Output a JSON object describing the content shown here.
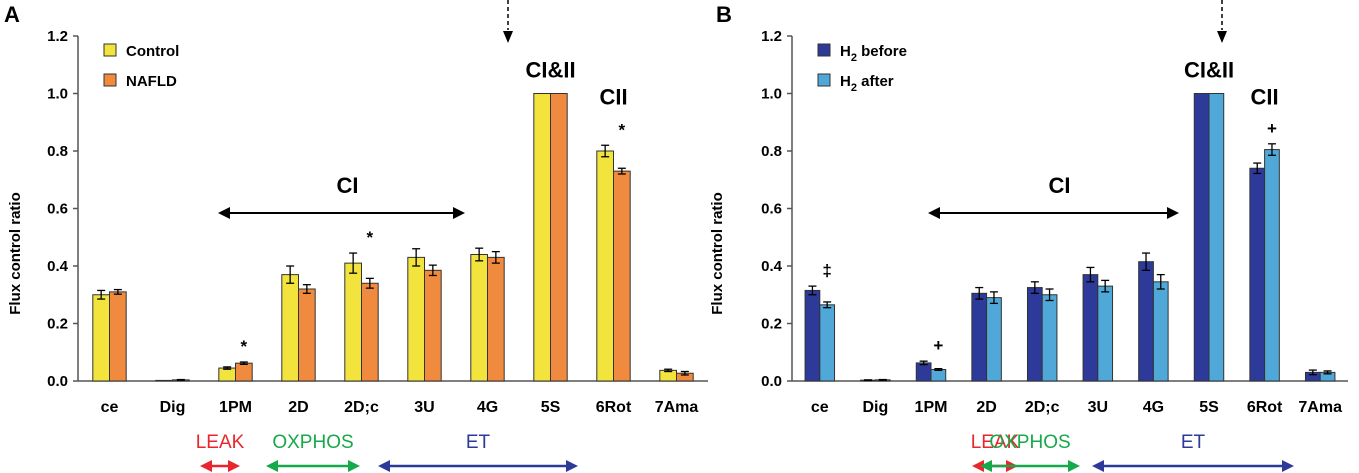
{
  "chart_data": [
    {
      "type": "bar",
      "panel_label": "A",
      "ylabel": "Flux control ratio",
      "ylim": [
        0,
        1.2
      ],
      "yticks": [
        "0.0",
        "0.2",
        "0.4",
        "0.6",
        "0.8",
        "1.0",
        "1.2"
      ],
      "categories": [
        "ce",
        "Dig",
        "1PM",
        "2D",
        "2D;c",
        "3U",
        "4G",
        "5S",
        "6Rot",
        "7Ama"
      ],
      "series": [
        {
          "name": "Control",
          "color": "#F2E33D",
          "values": [
            0.3,
            0.0,
            0.045,
            0.37,
            0.41,
            0.43,
            0.44,
            1.0,
            0.8,
            0.037
          ],
          "errors": [
            0.015,
            0.0,
            0.004,
            0.03,
            0.035,
            0.03,
            0.022,
            0.0,
            0.02,
            0.004
          ]
        },
        {
          "name": "NAFLD",
          "color": "#F08A3E",
          "values": [
            0.31,
            0.004,
            0.062,
            0.32,
            0.34,
            0.385,
            0.43,
            1.0,
            0.73,
            0.027
          ],
          "errors": [
            0.008,
            0.001,
            0.004,
            0.015,
            0.017,
            0.018,
            0.02,
            0.0,
            0.01,
            0.006
          ]
        }
      ],
      "markers": [
        {
          "category": "1PM",
          "text": "*"
        },
        {
          "category": "2D;c",
          "text": "*"
        },
        {
          "category": "6Rot",
          "text": "*"
        }
      ],
      "annotations": {
        "ci": "CI",
        "ci_ii": "CI&II",
        "cii": "CII"
      },
      "states": [
        {
          "text": "LEAK",
          "color": "#E8262B"
        },
        {
          "text": "OXPHOS",
          "color": "#16A94A"
        },
        {
          "text": "ET",
          "color": "#2E3A9A"
        }
      ]
    },
    {
      "type": "bar",
      "panel_label": "B",
      "ylabel": "Flux control ratio",
      "ylim": [
        0,
        1.2
      ],
      "yticks": [
        "0.0",
        "0.2",
        "0.4",
        "0.6",
        "0.8",
        "1.0",
        "1.2"
      ],
      "categories": [
        "ce",
        "Dig",
        "1PM",
        "2D",
        "2D;c",
        "3U",
        "4G",
        "5S",
        "6Rot",
        "7Ama"
      ],
      "series": [
        {
          "name": "H2 before",
          "color": "#2E3A9A",
          "values": [
            0.315,
            0.003,
            0.063,
            0.305,
            0.325,
            0.37,
            0.415,
            1.0,
            0.74,
            0.03
          ],
          "errors": [
            0.015,
            0.001,
            0.006,
            0.02,
            0.02,
            0.025,
            0.03,
            0.0,
            0.018,
            0.008
          ]
        },
        {
          "name": "H2 after",
          "color": "#4FA8D8",
          "values": [
            0.265,
            0.004,
            0.04,
            0.29,
            0.3,
            0.33,
            0.345,
            1.0,
            0.805,
            0.03
          ],
          "errors": [
            0.01,
            0.001,
            0.003,
            0.02,
            0.02,
            0.02,
            0.025,
            0.0,
            0.02,
            0.005
          ]
        }
      ],
      "markers": [
        {
          "category": "ce",
          "text": "‡"
        },
        {
          "category": "1PM",
          "text": "+"
        },
        {
          "category": "6Rot",
          "text": "+"
        }
      ],
      "annotations": {
        "ci": "CI",
        "ci_ii": "CI&II",
        "cii": "CII"
      },
      "states": [
        {
          "text": "LEAK",
          "color": "#E8262B"
        },
        {
          "text": "OXPHOS",
          "color": "#16A94A"
        },
        {
          "text": "ET",
          "color": "#2E3A9A"
        }
      ]
    }
  ],
  "legend_b": {
    "before_prefix": "H",
    "before_sub": "2",
    "before_suffix": " before",
    "after_prefix": "H",
    "after_sub": "2",
    "after_suffix": " after"
  }
}
